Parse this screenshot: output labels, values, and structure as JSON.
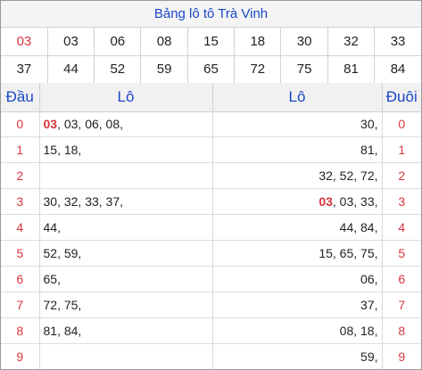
{
  "title": "Bảng lô tô Trà Vinh",
  "numbers_row1": [
    "03",
    "03",
    "06",
    "08",
    "15",
    "18",
    "30",
    "32",
    "33"
  ],
  "numbers_row2": [
    "37",
    "44",
    "52",
    "59",
    "65",
    "72",
    "75",
    "81",
    "84"
  ],
  "highlight_color": "#d9343e",
  "accent_color": "#1a47c8",
  "headers": {
    "dau": "Đầu",
    "lo_left": "Lô",
    "lo_right": "Lô",
    "duoi": "Đuôi"
  },
  "rows": [
    {
      "dau": "0",
      "left_hl": "03",
      "left": ", 03, 06, 08,",
      "right_hl": "",
      "right": "30,",
      "duoi": "0"
    },
    {
      "dau": "1",
      "left_hl": "",
      "left": "15, 18,",
      "right_hl": "",
      "right": "81,",
      "duoi": "1"
    },
    {
      "dau": "2",
      "left_hl": "",
      "left": "",
      "right_hl": "",
      "right": "32, 52, 72,",
      "duoi": "2"
    },
    {
      "dau": "3",
      "left_hl": "",
      "left": "30, 32, 33, 37,",
      "right_hl": "03",
      "right": ", 03, 33,",
      "duoi": "3"
    },
    {
      "dau": "4",
      "left_hl": "",
      "left": "44,",
      "right_hl": "",
      "right": "44, 84,",
      "duoi": "4"
    },
    {
      "dau": "5",
      "left_hl": "",
      "left": "52, 59,",
      "right_hl": "",
      "right": "15, 65, 75,",
      "duoi": "5"
    },
    {
      "dau": "6",
      "left_hl": "",
      "left": "65,",
      "right_hl": "",
      "right": "06,",
      "duoi": "6"
    },
    {
      "dau": "7",
      "left_hl": "",
      "left": "72, 75,",
      "right_hl": "",
      "right": "37,",
      "duoi": "7"
    },
    {
      "dau": "8",
      "left_hl": "",
      "left": "81, 84,",
      "right_hl": "",
      "right": "08, 18,",
      "duoi": "8"
    },
    {
      "dau": "9",
      "left_hl": "",
      "left": "",
      "right_hl": "",
      "right": "59,",
      "duoi": "9"
    }
  ]
}
